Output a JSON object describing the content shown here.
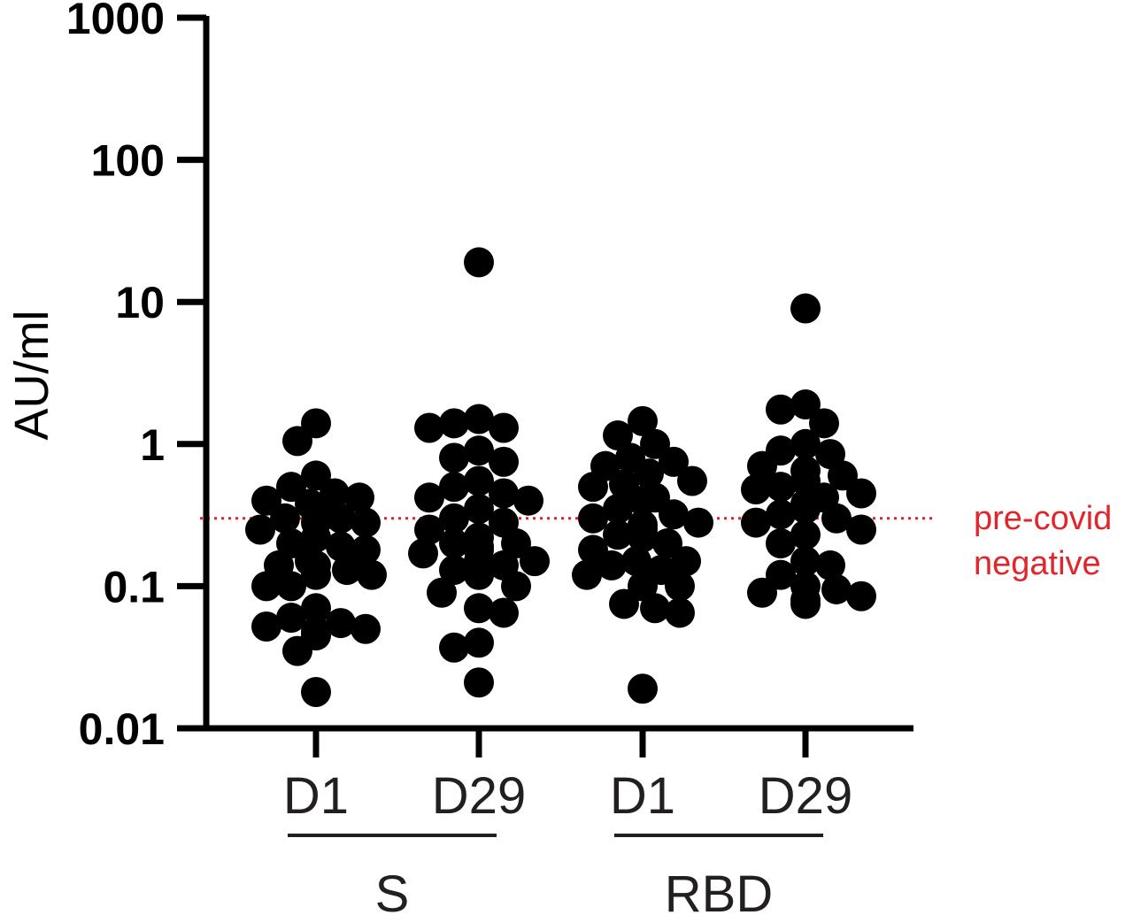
{
  "chart_data": {
    "type": "scatter",
    "ylabel": "AU/ml",
    "yscale": "log",
    "ylim": [
      0.01,
      1000
    ],
    "yticks": [
      "1000",
      "100",
      "10",
      "1",
      "0.1",
      "0.01"
    ],
    "categories": [
      "D1",
      "D29",
      "D1",
      "D29"
    ],
    "groups": [
      {
        "label": "S",
        "categories": [
          0,
          1
        ]
      },
      {
        "label": "RBD",
        "categories": [
          2,
          3
        ]
      }
    ],
    "threshold": {
      "value": 0.3,
      "label_line1": "pre-covid",
      "label_line2": "negative"
    },
    "series": [
      {
        "values": [
          1.4,
          1.05,
          0.6,
          0.5,
          0.45,
          0.42,
          0.4,
          0.38,
          0.35,
          0.33,
          0.3,
          0.3,
          0.28,
          0.28,
          0.25,
          0.22,
          0.2,
          0.19,
          0.18,
          0.15,
          0.14,
          0.14,
          0.13,
          0.12,
          0.12,
          0.1,
          0.1,
          0.07,
          0.06,
          0.055,
          0.052,
          0.05,
          0.048,
          0.045,
          0.035,
          0.018
        ]
      },
      {
        "values": [
          19,
          1.5,
          1.4,
          1.3,
          1.3,
          0.9,
          0.8,
          0.75,
          0.55,
          0.5,
          0.45,
          0.42,
          0.4,
          0.35,
          0.3,
          0.28,
          0.25,
          0.22,
          0.2,
          0.2,
          0.19,
          0.18,
          0.17,
          0.15,
          0.15,
          0.14,
          0.13,
          0.12,
          0.12,
          0.1,
          0.09,
          0.07,
          0.065,
          0.04,
          0.037,
          0.021
        ]
      },
      {
        "values": [
          1.45,
          1.15,
          1.0,
          0.8,
          0.75,
          0.7,
          0.62,
          0.55,
          0.52,
          0.5,
          0.42,
          0.4,
          0.35,
          0.32,
          0.3,
          0.28,
          0.27,
          0.25,
          0.23,
          0.22,
          0.2,
          0.18,
          0.15,
          0.15,
          0.14,
          0.13,
          0.12,
          0.1,
          0.1,
          0.075,
          0.07,
          0.065,
          0.019
        ]
      },
      {
        "values": [
          9,
          1.9,
          1.75,
          1.4,
          1.0,
          0.9,
          0.85,
          0.7,
          0.65,
          0.6,
          0.55,
          0.5,
          0.48,
          0.45,
          0.42,
          0.38,
          0.35,
          0.32,
          0.3,
          0.28,
          0.25,
          0.23,
          0.2,
          0.15,
          0.14,
          0.12,
          0.1,
          0.095,
          0.09,
          0.085,
          0.08,
          0.075
        ]
      }
    ]
  }
}
